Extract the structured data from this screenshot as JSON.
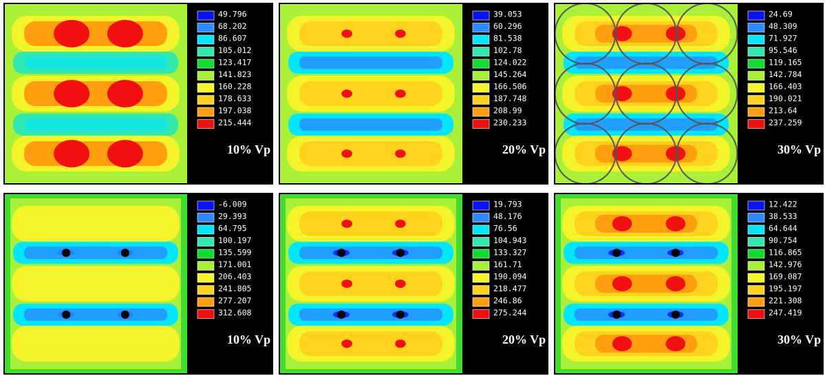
{
  "panels": [
    {
      "legend": [
        "49.796",
        "68.202",
        "86.607",
        "105.012",
        "123.417",
        "141.823",
        "160.228",
        "178.633",
        "197.038",
        "215.444"
      ],
      "label": "10% Vp"
    },
    {
      "legend": [
        "39.053",
        "60.296",
        "81.538",
        "102.78",
        "124.022",
        "145.264",
        "166.506",
        "187.748",
        "208.99",
        "230.233"
      ],
      "label": "20% Vp"
    },
    {
      "legend": [
        "24.69",
        "48.309",
        "71.927",
        "95.546",
        "119.165",
        "142.784",
        "166.403",
        "190.021",
        "213.64",
        "237.259"
      ],
      "label": "30% Vp"
    },
    {
      "legend": [
        "-6.009",
        "29.393",
        "64.795",
        "100.197",
        "135.599",
        "171.001",
        "206.403",
        "241.805",
        "277.207",
        "312.608"
      ],
      "label": "10% Vp"
    },
    {
      "legend": [
        "19.793",
        "48.176",
        "76.56",
        "104.943",
        "133.327",
        "161.71",
        "190.094",
        "218.477",
        "246.86",
        "275.244"
      ],
      "label": "20% Vp"
    },
    {
      "legend": [
        "12.422",
        "38.533",
        "64.644",
        "90.754",
        "116.865",
        "142.976",
        "169.087",
        "195.197",
        "221.308",
        "247.419"
      ],
      "label": "30% Vp"
    }
  ]
}
